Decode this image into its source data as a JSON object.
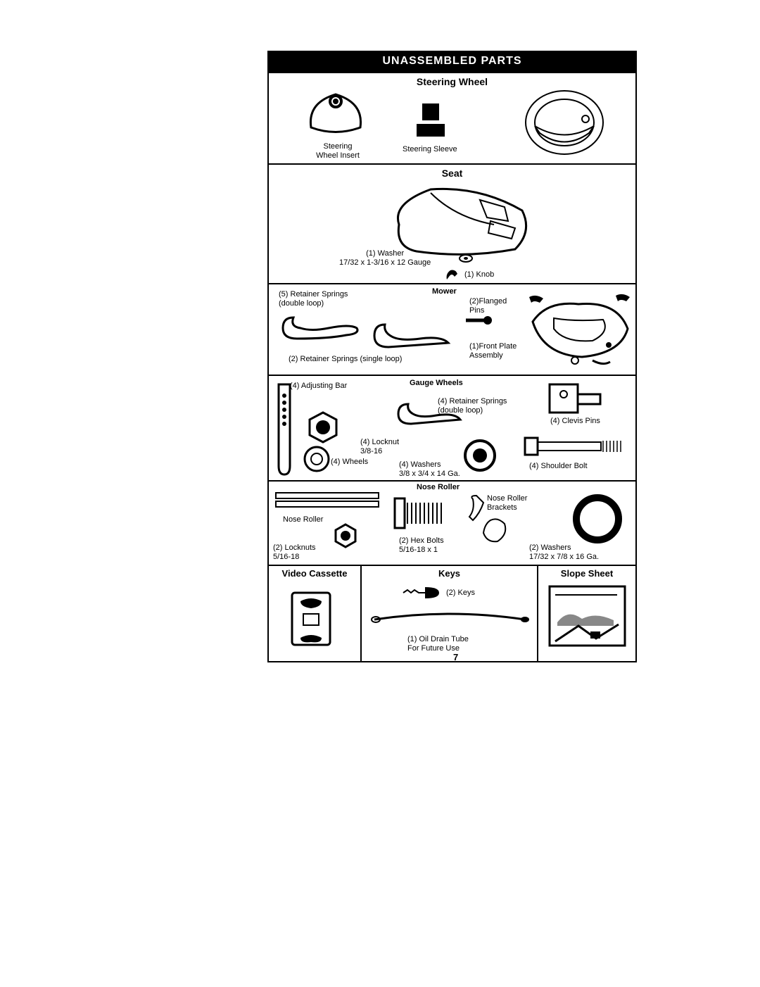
{
  "title": "UNASSEMBLED PARTS",
  "page_number": "7",
  "sections": {
    "steering": {
      "heading": "Steering Wheel",
      "insert_label": "Steering\nWheel Insert",
      "sleeve_label": "Steering Sleeve"
    },
    "seat": {
      "heading": "Seat",
      "washer_label": "(1) Washer\n17/32 x 1-3/16 x 12 Gauge",
      "knob_label": "(1) Knob"
    },
    "mower": {
      "heading": "Mower",
      "retainer5": "(5)  Retainer Springs\n(double loop)",
      "retainer2": "(2)  Retainer Springs (single loop)",
      "flanged": "(2)Flanged\nPins",
      "frontplate": "(1)Front Plate\nAssembly"
    },
    "gauge": {
      "heading": "Gauge Wheels",
      "adjbar": "(4) Adjusting Bar",
      "locknut": "(4) Locknut\n3/8-16",
      "wheels": "(4) Wheels",
      "retainer": "(4)  Retainer Springs\n(double loop)",
      "washers": "(4) Washers\n3/8 x 3/4 x 14 Ga.",
      "clevis": "(4) Clevis Pins",
      "shoulder": "(4) Shoulder Bolt"
    },
    "nose": {
      "heading": "Nose Roller",
      "roller": "Nose Roller",
      "locknuts": "(2) Locknuts\n5/16-18",
      "hexbolts": "(2) Hex Bolts\n5/16-18 x 1",
      "brackets": "Nose Roller\nBrackets",
      "washers": "(2) Washers\n17/32 x 7/8 x 16 Ga."
    },
    "bottom": {
      "video": "Video Cassette",
      "keys_h": "Keys",
      "slope_h": "Slope Sheet",
      "keys": "(2) Keys",
      "drain": "(1) Oil Drain Tube\nFor Future Use"
    }
  },
  "colors": {
    "black": "#000000",
    "white": "#ffffff"
  }
}
